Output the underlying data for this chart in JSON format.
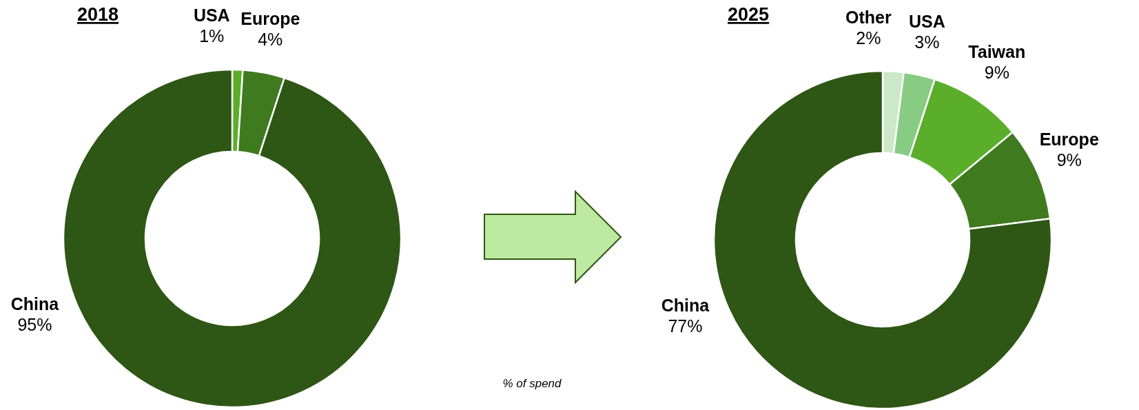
{
  "chart_data": [
    {
      "type": "donut",
      "title": "2018",
      "categories": [
        "USA",
        "Europe",
        "China"
      ],
      "values": [
        1,
        4,
        95
      ],
      "colors": [
        "#5aae2a",
        "#3f7a1f",
        "#2e5614"
      ],
      "value_labels": [
        "1%",
        "4%",
        "95%"
      ],
      "annotations": [
        "% of spend"
      ]
    },
    {
      "type": "donut",
      "title": "2025",
      "categories": [
        "Other",
        "USA",
        "Taiwan",
        "Europe",
        "China"
      ],
      "values": [
        2,
        3,
        9,
        9,
        77
      ],
      "colors": [
        "#cce8c8",
        "#88cc84",
        "#5aae2a",
        "#3f7a1f",
        "#2e5614"
      ],
      "value_labels": [
        "2%",
        "3%",
        "9%",
        "9%",
        "77%"
      ]
    }
  ]
}
